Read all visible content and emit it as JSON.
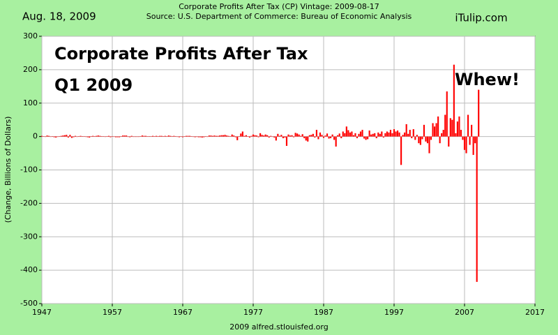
{
  "chart_data": {
    "type": "bar",
    "date": "Aug. 18, 2009",
    "title": "Corporate Profits After Tax (CP) Vintage: 2009-08-17",
    "subtitle": "Source: U.S. Department of Commerce: Bureau of Economic Analysis",
    "brand": "iTulip.com",
    "ylabel": "(Change, Billions of Dollars)",
    "footer": "2009 alfred.stlouisfed.org",
    "annotations": [
      "Corporate Profits After Tax",
      "Q1 2009",
      "Whew!"
    ],
    "color": "#ff0000",
    "grid": true,
    "xlim": [
      1947,
      2017
    ],
    "xticks": [
      1947,
      1957,
      1967,
      1977,
      1987,
      1997,
      2007,
      2017
    ],
    "ylim": [
      -500,
      300
    ],
    "yticks": [
      -500,
      -400,
      -300,
      -200,
      -100,
      0,
      100,
      200,
      300
    ],
    "x": [
      1947,
      1947.25,
      1947.5,
      1947.75,
      1948,
      1948.25,
      1948.5,
      1948.75,
      1949,
      1949.25,
      1949.5,
      1949.75,
      1950,
      1950.25,
      1950.5,
      1950.75,
      1951,
      1951.25,
      1951.5,
      1951.75,
      1952,
      1952.25,
      1952.5,
      1952.75,
      1953,
      1953.25,
      1953.5,
      1953.75,
      1954,
      1954.25,
      1954.5,
      1954.75,
      1955,
      1955.25,
      1955.5,
      1955.75,
      1956,
      1956.25,
      1956.5,
      1956.75,
      1957,
      1957.25,
      1957.5,
      1957.75,
      1958,
      1958.25,
      1958.5,
      1958.75,
      1959,
      1959.25,
      1959.5,
      1959.75,
      1960,
      1960.25,
      1960.5,
      1960.75,
      1961,
      1961.25,
      1961.5,
      1961.75,
      1962,
      1962.25,
      1962.5,
      1962.75,
      1963,
      1963.25,
      1963.5,
      1963.75,
      1964,
      1964.25,
      1964.5,
      1964.75,
      1965,
      1965.25,
      1965.5,
      1965.75,
      1966,
      1966.25,
      1966.5,
      1966.75,
      1967,
      1967.25,
      1967.5,
      1967.75,
      1968,
      1968.25,
      1968.5,
      1968.75,
      1969,
      1969.25,
      1969.5,
      1969.75,
      1970,
      1970.25,
      1970.5,
      1970.75,
      1971,
      1971.25,
      1971.5,
      1971.75,
      1972,
      1972.25,
      1972.5,
      1972.75,
      1973,
      1973.25,
      1973.5,
      1973.75,
      1974,
      1974.25,
      1974.5,
      1974.75,
      1975,
      1975.25,
      1975.5,
      1975.75,
      1976,
      1976.25,
      1976.5,
      1976.75,
      1977,
      1977.25,
      1977.5,
      1977.75,
      1978,
      1978.25,
      1978.5,
      1978.75,
      1979,
      1979.25,
      1979.5,
      1979.75,
      1980,
      1980.25,
      1980.5,
      1980.75,
      1981,
      1981.25,
      1981.5,
      1981.75,
      1982,
      1982.25,
      1982.5,
      1982.75,
      1983,
      1983.25,
      1983.5,
      1983.75,
      1984,
      1984.25,
      1984.5,
      1984.75,
      1985,
      1985.25,
      1985.5,
      1985.75,
      1986,
      1986.25,
      1986.5,
      1986.75,
      1987,
      1987.25,
      1987.5,
      1987.75,
      1988,
      1988.25,
      1988.5,
      1988.75,
      1989,
      1989.25,
      1989.5,
      1989.75,
      1990,
      1990.25,
      1990.5,
      1990.75,
      1991,
      1991.25,
      1991.5,
      1991.75,
      1992,
      1992.25,
      1992.5,
      1992.75,
      1993,
      1993.25,
      1993.5,
      1993.75,
      1994,
      1994.25,
      1994.5,
      1994.75,
      1995,
      1995.25,
      1995.5,
      1995.75,
      1996,
      1996.25,
      1996.5,
      1996.75,
      1997,
      1997.25,
      1997.5,
      1997.75,
      1998,
      1998.25,
      1998.5,
      1998.75,
      1999,
      1999.25,
      1999.5,
      1999.75,
      2000,
      2000.25,
      2000.5,
      2000.75,
      2001,
      2001.25,
      2001.5,
      2001.75,
      2002,
      2002.25,
      2002.5,
      2002.75,
      2003,
      2003.25,
      2003.5,
      2003.75,
      2004,
      2004.25,
      2004.5,
      2004.75,
      2005,
      2005.25,
      2005.5,
      2005.75,
      2006,
      2006.25,
      2006.5,
      2006.75,
      2007,
      2007.25,
      2007.5,
      2007.75,
      2008,
      2008.25,
      2008.5,
      2008.75,
      2009
    ],
    "values": [
      2,
      1,
      -1,
      3,
      2,
      -1,
      1,
      -2,
      -3,
      -1,
      1,
      2,
      3,
      4,
      5,
      -3,
      5,
      -4,
      -2,
      2,
      -1,
      1,
      2,
      1,
      1,
      -1,
      -2,
      -3,
      1,
      2,
      1,
      2,
      3,
      2,
      1,
      1,
      -1,
      1,
      2,
      -2,
      1,
      -1,
      -2,
      -2,
      -2,
      1,
      3,
      3,
      3,
      -1,
      -2,
      2,
      -1,
      -1,
      -1,
      -1,
      1,
      3,
      2,
      2,
      1,
      1,
      1,
      2,
      1,
      2,
      1,
      2,
      2,
      1,
      2,
      1,
      3,
      2,
      1,
      2,
      1,
      -1,
      -2,
      1,
      -2,
      1,
      2,
      2,
      2,
      1,
      -1,
      -2,
      -1,
      -2,
      -2,
      -3,
      -2,
      1,
      -1,
      3,
      3,
      2,
      3,
      2,
      2,
      3,
      4,
      4,
      5,
      3,
      2,
      1,
      6,
      3,
      -2,
      -11,
      1,
      9,
      15,
      2,
      4,
      1,
      -3,
      2,
      6,
      4,
      3,
      -2,
      10,
      5,
      3,
      6,
      4,
      -3,
      2,
      -1,
      -3,
      -12,
      8,
      2,
      5,
      -5,
      -3,
      -28,
      6,
      3,
      4,
      -2,
      11,
      9,
      6,
      2,
      7,
      -5,
      -12,
      -15,
      4,
      5,
      8,
      -3,
      20,
      -8,
      12,
      5,
      -4,
      3,
      9,
      -6,
      -5,
      6,
      -10,
      -30,
      4,
      9,
      -5,
      15,
      10,
      30,
      19,
      12,
      15,
      4,
      10,
      -5,
      8,
      15,
      20,
      -6,
      -10,
      -8,
      18,
      6,
      8,
      10,
      -5,
      12,
      8,
      15,
      -3,
      10,
      15,
      12,
      20,
      10,
      22,
      15,
      18,
      12,
      -85,
      5,
      12,
      37,
      8,
      20,
      -5,
      22,
      -10,
      5,
      -20,
      -25,
      -8,
      35,
      -15,
      -20,
      -50,
      -10,
      40,
      30,
      40,
      60,
      -20,
      10,
      20,
      65,
      135,
      -30,
      55,
      50,
      215,
      10,
      45,
      60,
      20,
      -10,
      -40,
      -50,
      65,
      -25,
      35,
      -55,
      -20,
      -435,
      140
    ]
  }
}
